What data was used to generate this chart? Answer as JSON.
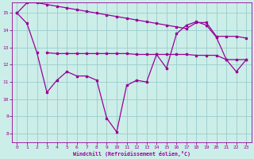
{
  "bg_color": "#cceee8",
  "line_color": "#990099",
  "grid_color": "#99cccc",
  "xlabel": "Windchill (Refroidissement éolien,°C)",
  "tick_color": "#990099",
  "ylim": [
    7.5,
    15.6
  ],
  "xlim": [
    -0.5,
    23.5
  ],
  "yticks": [
    8,
    9,
    10,
    11,
    12,
    13,
    14,
    15
  ],
  "xticks": [
    0,
    1,
    2,
    3,
    4,
    5,
    6,
    7,
    8,
    9,
    10,
    11,
    12,
    13,
    14,
    15,
    16,
    17,
    18,
    19,
    20,
    21,
    22,
    23
  ],
  "line1_x": [
    0,
    1,
    2,
    3,
    4,
    5,
    6,
    7,
    8,
    9,
    10,
    11,
    12,
    13,
    14,
    15,
    16,
    17,
    18,
    19,
    20,
    21,
    22,
    23
  ],
  "line1_y": [
    15.0,
    15.6,
    15.6,
    15.5,
    15.4,
    15.3,
    15.2,
    15.1,
    15.0,
    14.9,
    14.8,
    14.7,
    14.6,
    14.5,
    14.4,
    14.3,
    14.2,
    14.1,
    14.45,
    14.45,
    13.65,
    13.65,
    13.65,
    13.55
  ],
  "line2_x": [
    3,
    4,
    5,
    6,
    7,
    8,
    9,
    10,
    11,
    12,
    13,
    14,
    15,
    16,
    17,
    18,
    19,
    20,
    21,
    22,
    23
  ],
  "line2_y": [
    12.7,
    12.65,
    12.65,
    12.65,
    12.65,
    12.65,
    12.65,
    12.65,
    12.65,
    12.6,
    12.6,
    12.6,
    12.6,
    12.6,
    12.6,
    12.55,
    12.55,
    12.55,
    12.3,
    12.3,
    12.3
  ],
  "line3_x": [
    0,
    1,
    2,
    3,
    4,
    5,
    6,
    7,
    8,
    9,
    10,
    11,
    12,
    13,
    14,
    15,
    16,
    17,
    18,
    19,
    20,
    21,
    22,
    23
  ],
  "line3_y": [
    15.0,
    14.4,
    12.7,
    10.4,
    11.1,
    11.6,
    11.35,
    11.35,
    11.1,
    8.9,
    8.1,
    10.8,
    11.1,
    11.0,
    12.6,
    11.8,
    13.8,
    14.3,
    14.5,
    14.3,
    13.6,
    12.3,
    11.6,
    12.3
  ]
}
